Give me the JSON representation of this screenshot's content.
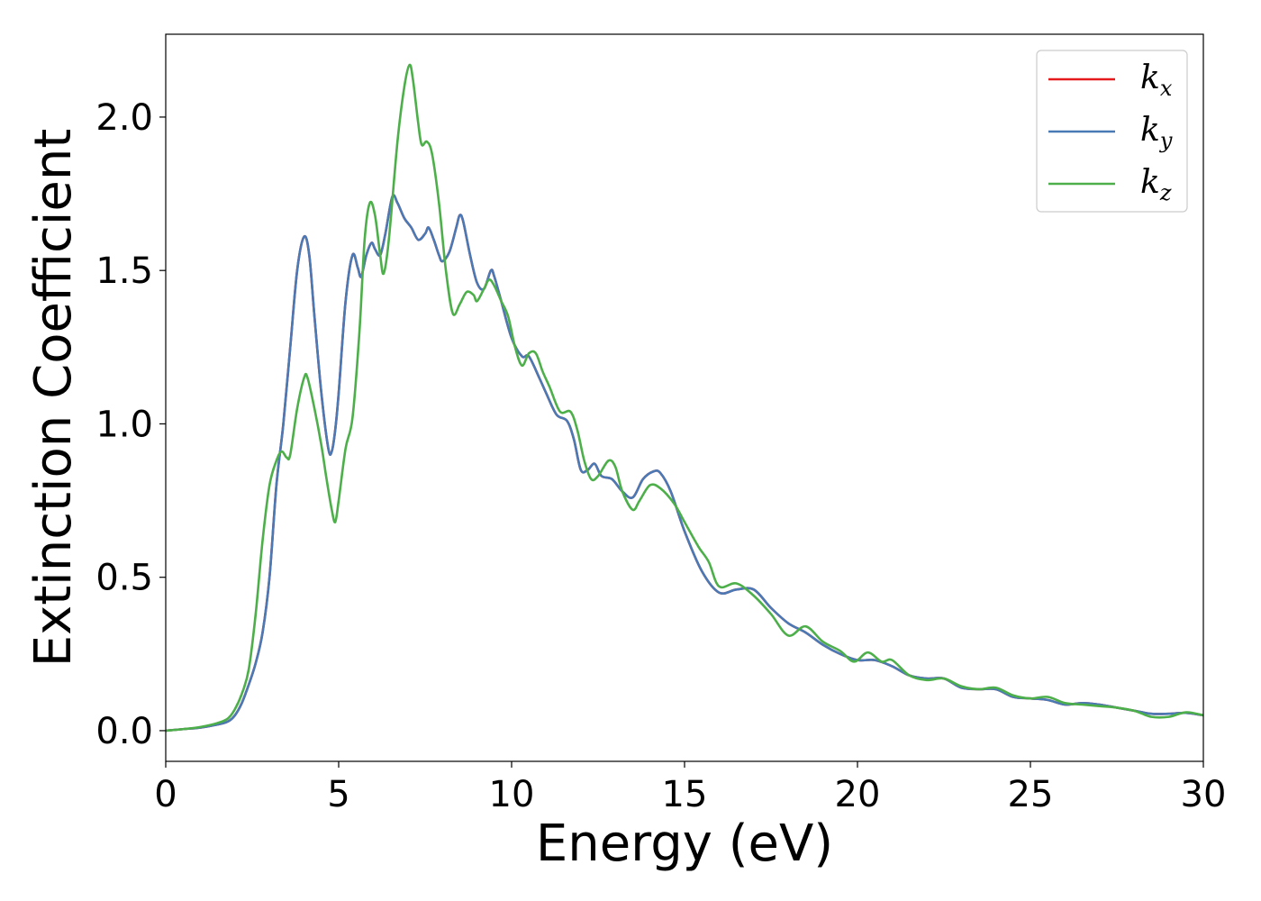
{
  "chart_data": {
    "type": "line",
    "title": "",
    "xlabel": "Energy (eV)",
    "ylabel": "Extinction Coefficient",
    "xlim": [
      0,
      30
    ],
    "ylim": [
      -0.1,
      2.27
    ],
    "xticks": [
      "0",
      "5",
      "10",
      "15",
      "20",
      "25",
      "30"
    ],
    "yticks": [
      "0.0",
      "0.5",
      "1.0",
      "1.5",
      "2.0"
    ],
    "grid": false,
    "legend_position": "top-right",
    "series": [
      {
        "name": "k_x",
        "legend_base": "k",
        "legend_sub": "x",
        "color": "#e41a1c",
        "points": [
          [
            0,
            0
          ],
          [
            0.5,
            0.005
          ],
          [
            1,
            0.01
          ],
          [
            1.5,
            0.02
          ],
          [
            1.8,
            0.03
          ],
          [
            2.0,
            0.05
          ],
          [
            2.2,
            0.09
          ],
          [
            2.4,
            0.15
          ],
          [
            2.6,
            0.22
          ],
          [
            2.8,
            0.32
          ],
          [
            3.0,
            0.5
          ],
          [
            3.2,
            0.8
          ],
          [
            3.4,
            1.0
          ],
          [
            3.6,
            1.25
          ],
          [
            3.8,
            1.5
          ],
          [
            4.0,
            1.61
          ],
          [
            4.15,
            1.55
          ],
          [
            4.3,
            1.35
          ],
          [
            4.5,
            1.1
          ],
          [
            4.7,
            0.92
          ],
          [
            4.8,
            0.91
          ],
          [
            4.9,
            0.98
          ],
          [
            5.0,
            1.1
          ],
          [
            5.2,
            1.4
          ],
          [
            5.4,
            1.55
          ],
          [
            5.55,
            1.51
          ],
          [
            5.65,
            1.48
          ],
          [
            5.8,
            1.55
          ],
          [
            5.95,
            1.59
          ],
          [
            6.05,
            1.57
          ],
          [
            6.2,
            1.55
          ],
          [
            6.35,
            1.62
          ],
          [
            6.55,
            1.74
          ],
          [
            6.7,
            1.72
          ],
          [
            6.9,
            1.67
          ],
          [
            7.1,
            1.64
          ],
          [
            7.3,
            1.6
          ],
          [
            7.5,
            1.62
          ],
          [
            7.6,
            1.64
          ],
          [
            7.75,
            1.6
          ],
          [
            7.9,
            1.55
          ],
          [
            8.0,
            1.53
          ],
          [
            8.2,
            1.56
          ],
          [
            8.4,
            1.64
          ],
          [
            8.5,
            1.68
          ],
          [
            8.6,
            1.66
          ],
          [
            8.8,
            1.55
          ],
          [
            9.0,
            1.46
          ],
          [
            9.2,
            1.44
          ],
          [
            9.4,
            1.5
          ],
          [
            9.5,
            1.48
          ],
          [
            9.7,
            1.4
          ],
          [
            10.0,
            1.28
          ],
          [
            10.3,
            1.22
          ],
          [
            10.5,
            1.22
          ],
          [
            10.8,
            1.15
          ],
          [
            11.0,
            1.1
          ],
          [
            11.3,
            1.03
          ],
          [
            11.6,
            1.01
          ],
          [
            11.8,
            0.95
          ],
          [
            12.0,
            0.85
          ],
          [
            12.2,
            0.85
          ],
          [
            12.4,
            0.87
          ],
          [
            12.6,
            0.83
          ],
          [
            12.9,
            0.82
          ],
          [
            13.2,
            0.78
          ],
          [
            13.5,
            0.76
          ],
          [
            13.8,
            0.82
          ],
          [
            14.1,
            0.845
          ],
          [
            14.3,
            0.84
          ],
          [
            14.6,
            0.78
          ],
          [
            15.0,
            0.65
          ],
          [
            15.5,
            0.52
          ],
          [
            16.0,
            0.45
          ],
          [
            16.5,
            0.46
          ],
          [
            17.0,
            0.46
          ],
          [
            17.5,
            0.4
          ],
          [
            18.0,
            0.35
          ],
          [
            18.5,
            0.32
          ],
          [
            19.0,
            0.28
          ],
          [
            19.5,
            0.25
          ],
          [
            20.0,
            0.23
          ],
          [
            20.5,
            0.23
          ],
          [
            21.0,
            0.21
          ],
          [
            21.5,
            0.18
          ],
          [
            22.0,
            0.17
          ],
          [
            22.5,
            0.17
          ],
          [
            23.0,
            0.14
          ],
          [
            23.5,
            0.135
          ],
          [
            24.0,
            0.135
          ],
          [
            24.5,
            0.11
          ],
          [
            25.0,
            0.105
          ],
          [
            25.5,
            0.1
          ],
          [
            26.0,
            0.085
          ],
          [
            26.5,
            0.09
          ],
          [
            27.0,
            0.085
          ],
          [
            27.5,
            0.075
          ],
          [
            28.0,
            0.065
          ],
          [
            28.5,
            0.055
          ],
          [
            29.0,
            0.055
          ],
          [
            29.5,
            0.058
          ],
          [
            30.0,
            0.05
          ]
        ]
      },
      {
        "name": "k_y",
        "legend_base": "k",
        "legend_sub": "y",
        "color": "#4a7ab5",
        "points": [
          [
            0,
            0
          ],
          [
            0.5,
            0.005
          ],
          [
            1,
            0.01
          ],
          [
            1.5,
            0.02
          ],
          [
            1.8,
            0.03
          ],
          [
            2.0,
            0.05
          ],
          [
            2.2,
            0.09
          ],
          [
            2.4,
            0.15
          ],
          [
            2.6,
            0.22
          ],
          [
            2.8,
            0.32
          ],
          [
            3.0,
            0.5
          ],
          [
            3.2,
            0.8
          ],
          [
            3.4,
            1.0
          ],
          [
            3.6,
            1.25
          ],
          [
            3.8,
            1.5
          ],
          [
            4.0,
            1.61
          ],
          [
            4.15,
            1.55
          ],
          [
            4.3,
            1.35
          ],
          [
            4.5,
            1.1
          ],
          [
            4.7,
            0.92
          ],
          [
            4.8,
            0.91
          ],
          [
            4.9,
            0.98
          ],
          [
            5.0,
            1.1
          ],
          [
            5.2,
            1.4
          ],
          [
            5.4,
            1.55
          ],
          [
            5.55,
            1.51
          ],
          [
            5.65,
            1.48
          ],
          [
            5.8,
            1.55
          ],
          [
            5.95,
            1.59
          ],
          [
            6.05,
            1.57
          ],
          [
            6.2,
            1.55
          ],
          [
            6.35,
            1.62
          ],
          [
            6.55,
            1.74
          ],
          [
            6.7,
            1.72
          ],
          [
            6.9,
            1.67
          ],
          [
            7.1,
            1.64
          ],
          [
            7.3,
            1.6
          ],
          [
            7.5,
            1.62
          ],
          [
            7.6,
            1.64
          ],
          [
            7.75,
            1.6
          ],
          [
            7.9,
            1.55
          ],
          [
            8.0,
            1.53
          ],
          [
            8.2,
            1.56
          ],
          [
            8.4,
            1.64
          ],
          [
            8.5,
            1.68
          ],
          [
            8.6,
            1.66
          ],
          [
            8.8,
            1.55
          ],
          [
            9.0,
            1.46
          ],
          [
            9.2,
            1.44
          ],
          [
            9.4,
            1.5
          ],
          [
            9.5,
            1.48
          ],
          [
            9.7,
            1.4
          ],
          [
            10.0,
            1.28
          ],
          [
            10.3,
            1.22
          ],
          [
            10.5,
            1.22
          ],
          [
            10.8,
            1.15
          ],
          [
            11.0,
            1.1
          ],
          [
            11.3,
            1.03
          ],
          [
            11.6,
            1.01
          ],
          [
            11.8,
            0.95
          ],
          [
            12.0,
            0.85
          ],
          [
            12.2,
            0.85
          ],
          [
            12.4,
            0.87
          ],
          [
            12.6,
            0.83
          ],
          [
            12.9,
            0.82
          ],
          [
            13.2,
            0.78
          ],
          [
            13.5,
            0.76
          ],
          [
            13.8,
            0.82
          ],
          [
            14.1,
            0.845
          ],
          [
            14.3,
            0.84
          ],
          [
            14.6,
            0.78
          ],
          [
            15.0,
            0.65
          ],
          [
            15.5,
            0.52
          ],
          [
            16.0,
            0.45
          ],
          [
            16.5,
            0.46
          ],
          [
            17.0,
            0.46
          ],
          [
            17.5,
            0.4
          ],
          [
            18.0,
            0.35
          ],
          [
            18.5,
            0.32
          ],
          [
            19.0,
            0.28
          ],
          [
            19.5,
            0.25
          ],
          [
            20.0,
            0.23
          ],
          [
            20.5,
            0.23
          ],
          [
            21.0,
            0.21
          ],
          [
            21.5,
            0.18
          ],
          [
            22.0,
            0.17
          ],
          [
            22.5,
            0.17
          ],
          [
            23.0,
            0.14
          ],
          [
            23.5,
            0.135
          ],
          [
            24.0,
            0.135
          ],
          [
            24.5,
            0.11
          ],
          [
            25.0,
            0.105
          ],
          [
            25.5,
            0.1
          ],
          [
            26.0,
            0.085
          ],
          [
            26.5,
            0.09
          ],
          [
            27.0,
            0.085
          ],
          [
            27.5,
            0.075
          ],
          [
            28.0,
            0.065
          ],
          [
            28.5,
            0.055
          ],
          [
            29.0,
            0.055
          ],
          [
            29.5,
            0.058
          ],
          [
            30.0,
            0.05
          ]
        ]
      },
      {
        "name": "k_z",
        "legend_base": "k",
        "legend_sub": "z",
        "color": "#4daf4a",
        "points": [
          [
            0,
            0
          ],
          [
            0.5,
            0.005
          ],
          [
            1,
            0.012
          ],
          [
            1.5,
            0.025
          ],
          [
            1.8,
            0.04
          ],
          [
            2.0,
            0.07
          ],
          [
            2.2,
            0.12
          ],
          [
            2.4,
            0.2
          ],
          [
            2.6,
            0.38
          ],
          [
            2.8,
            0.62
          ],
          [
            3.0,
            0.8
          ],
          [
            3.2,
            0.88
          ],
          [
            3.35,
            0.91
          ],
          [
            3.5,
            0.89
          ],
          [
            3.6,
            0.9
          ],
          [
            3.8,
            1.05
          ],
          [
            4.0,
            1.15
          ],
          [
            4.1,
            1.15
          ],
          [
            4.3,
            1.05
          ],
          [
            4.5,
            0.93
          ],
          [
            4.65,
            0.82
          ],
          [
            4.8,
            0.72
          ],
          [
            4.9,
            0.68
          ],
          [
            5.0,
            0.75
          ],
          [
            5.2,
            0.92
          ],
          [
            5.4,
            1.02
          ],
          [
            5.6,
            1.3
          ],
          [
            5.75,
            1.6
          ],
          [
            5.9,
            1.72
          ],
          [
            6.05,
            1.68
          ],
          [
            6.2,
            1.55
          ],
          [
            6.3,
            1.49
          ],
          [
            6.45,
            1.6
          ],
          [
            6.7,
            1.92
          ],
          [
            6.9,
            2.1
          ],
          [
            7.05,
            2.17
          ],
          [
            7.15,
            2.12
          ],
          [
            7.3,
            1.98
          ],
          [
            7.4,
            1.91
          ],
          [
            7.55,
            1.92
          ],
          [
            7.7,
            1.88
          ],
          [
            7.9,
            1.72
          ],
          [
            8.1,
            1.5
          ],
          [
            8.3,
            1.36
          ],
          [
            8.5,
            1.39
          ],
          [
            8.7,
            1.43
          ],
          [
            8.9,
            1.42
          ],
          [
            9.0,
            1.4
          ],
          [
            9.2,
            1.44
          ],
          [
            9.35,
            1.47
          ],
          [
            9.5,
            1.45
          ],
          [
            9.7,
            1.4
          ],
          [
            9.9,
            1.35
          ],
          [
            10.1,
            1.25
          ],
          [
            10.3,
            1.19
          ],
          [
            10.5,
            1.23
          ],
          [
            10.7,
            1.23
          ],
          [
            10.9,
            1.17
          ],
          [
            11.1,
            1.12
          ],
          [
            11.4,
            1.04
          ],
          [
            11.7,
            1.04
          ],
          [
            11.9,
            0.98
          ],
          [
            12.1,
            0.88
          ],
          [
            12.3,
            0.82
          ],
          [
            12.5,
            0.83
          ],
          [
            12.8,
            0.88
          ],
          [
            13.0,
            0.86
          ],
          [
            13.2,
            0.78
          ],
          [
            13.5,
            0.72
          ],
          [
            13.7,
            0.75
          ],
          [
            14.0,
            0.8
          ],
          [
            14.3,
            0.79
          ],
          [
            14.7,
            0.74
          ],
          [
            15.0,
            0.68
          ],
          [
            15.4,
            0.6
          ],
          [
            15.7,
            0.55
          ],
          [
            16.0,
            0.47
          ],
          [
            16.5,
            0.48
          ],
          [
            17.0,
            0.44
          ],
          [
            17.5,
            0.38
          ],
          [
            18.0,
            0.31
          ],
          [
            18.5,
            0.34
          ],
          [
            19.0,
            0.29
          ],
          [
            19.5,
            0.26
          ],
          [
            19.9,
            0.225
          ],
          [
            20.3,
            0.255
          ],
          [
            20.7,
            0.225
          ],
          [
            21.0,
            0.23
          ],
          [
            21.5,
            0.18
          ],
          [
            22.0,
            0.165
          ],
          [
            22.5,
            0.17
          ],
          [
            23.0,
            0.145
          ],
          [
            23.5,
            0.135
          ],
          [
            24.0,
            0.14
          ],
          [
            24.5,
            0.115
          ],
          [
            25.0,
            0.105
          ],
          [
            25.5,
            0.11
          ],
          [
            26.0,
            0.09
          ],
          [
            26.5,
            0.085
          ],
          [
            27.0,
            0.08
          ],
          [
            27.5,
            0.075
          ],
          [
            28.0,
            0.065
          ],
          [
            28.5,
            0.045
          ],
          [
            29.0,
            0.045
          ],
          [
            29.5,
            0.06
          ],
          [
            30.0,
            0.05
          ]
        ]
      }
    ]
  }
}
